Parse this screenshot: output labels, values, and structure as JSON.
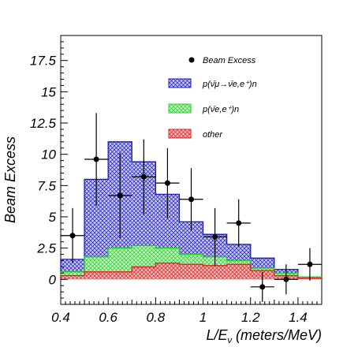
{
  "chart_data": {
    "type": "bar",
    "xlabel": "L/E",
    "xlabel_sub": "ν",
    "xlabel_tail": " (meters/MeV)",
    "ylabel": "Beam Excess",
    "xlim": [
      0.4,
      1.5
    ],
    "ylim": [
      -2,
      19.5
    ],
    "x_ticks": [
      "0.4",
      "0.6",
      "0.8",
      "1",
      "1.2",
      "1.4"
    ],
    "y_ticks": [
      "0",
      "2.5",
      "5",
      "7.5",
      "10",
      "12.5",
      "15",
      "17.5"
    ],
    "bin_edges": [
      0.4,
      0.5,
      0.6,
      0.7,
      0.8,
      0.9,
      1.0,
      1.1,
      1.2,
      1.3,
      1.4,
      1.5
    ],
    "series": [
      {
        "name": "p(ν̄μ→ν̄e,e⁺)n",
        "type": "stacked_hist",
        "color": "#1a1acc",
        "fill": "#c7c7f0",
        "hatch": "cross",
        "values": [
          1.6,
          8.0,
          11.0,
          9.4,
          6.8,
          4.6,
          3.6,
          2.8,
          1.7,
          0.8,
          0.2
        ]
      },
      {
        "name": "p(ν̄e,e⁺)n",
        "type": "stacked_hist",
        "color": "#22cc22",
        "fill": "#c8f5c8",
        "hatch": "cross",
        "values": [
          0.6,
          1.8,
          2.5,
          2.7,
          2.5,
          2.0,
          1.8,
          1.5,
          0.9,
          0.5,
          0.2
        ]
      },
      {
        "name": "other",
        "type": "stacked_hist",
        "color": "#e02020",
        "fill": "#f4b8b8",
        "hatch": "cross",
        "values": [
          0.3,
          0.6,
          0.6,
          1.0,
          1.3,
          1.2,
          1.1,
          1.2,
          0.7,
          0.3,
          0.1
        ]
      }
    ],
    "points": {
      "name": "Beam Excess",
      "x": [
        0.45,
        0.55,
        0.65,
        0.75,
        0.85,
        0.95,
        1.05,
        1.15,
        1.25,
        1.35,
        1.45
      ],
      "y": [
        3.5,
        9.6,
        6.7,
        8.2,
        7.7,
        6.4,
        3.4,
        4.5,
        -0.6,
        0.0,
        1.2
      ],
      "yerr": [
        2.2,
        3.7,
        3.4,
        3.0,
        2.8,
        2.5,
        2.3,
        1.9,
        1.2,
        1.2,
        1.3
      ]
    },
    "legend_position": "top-right"
  }
}
